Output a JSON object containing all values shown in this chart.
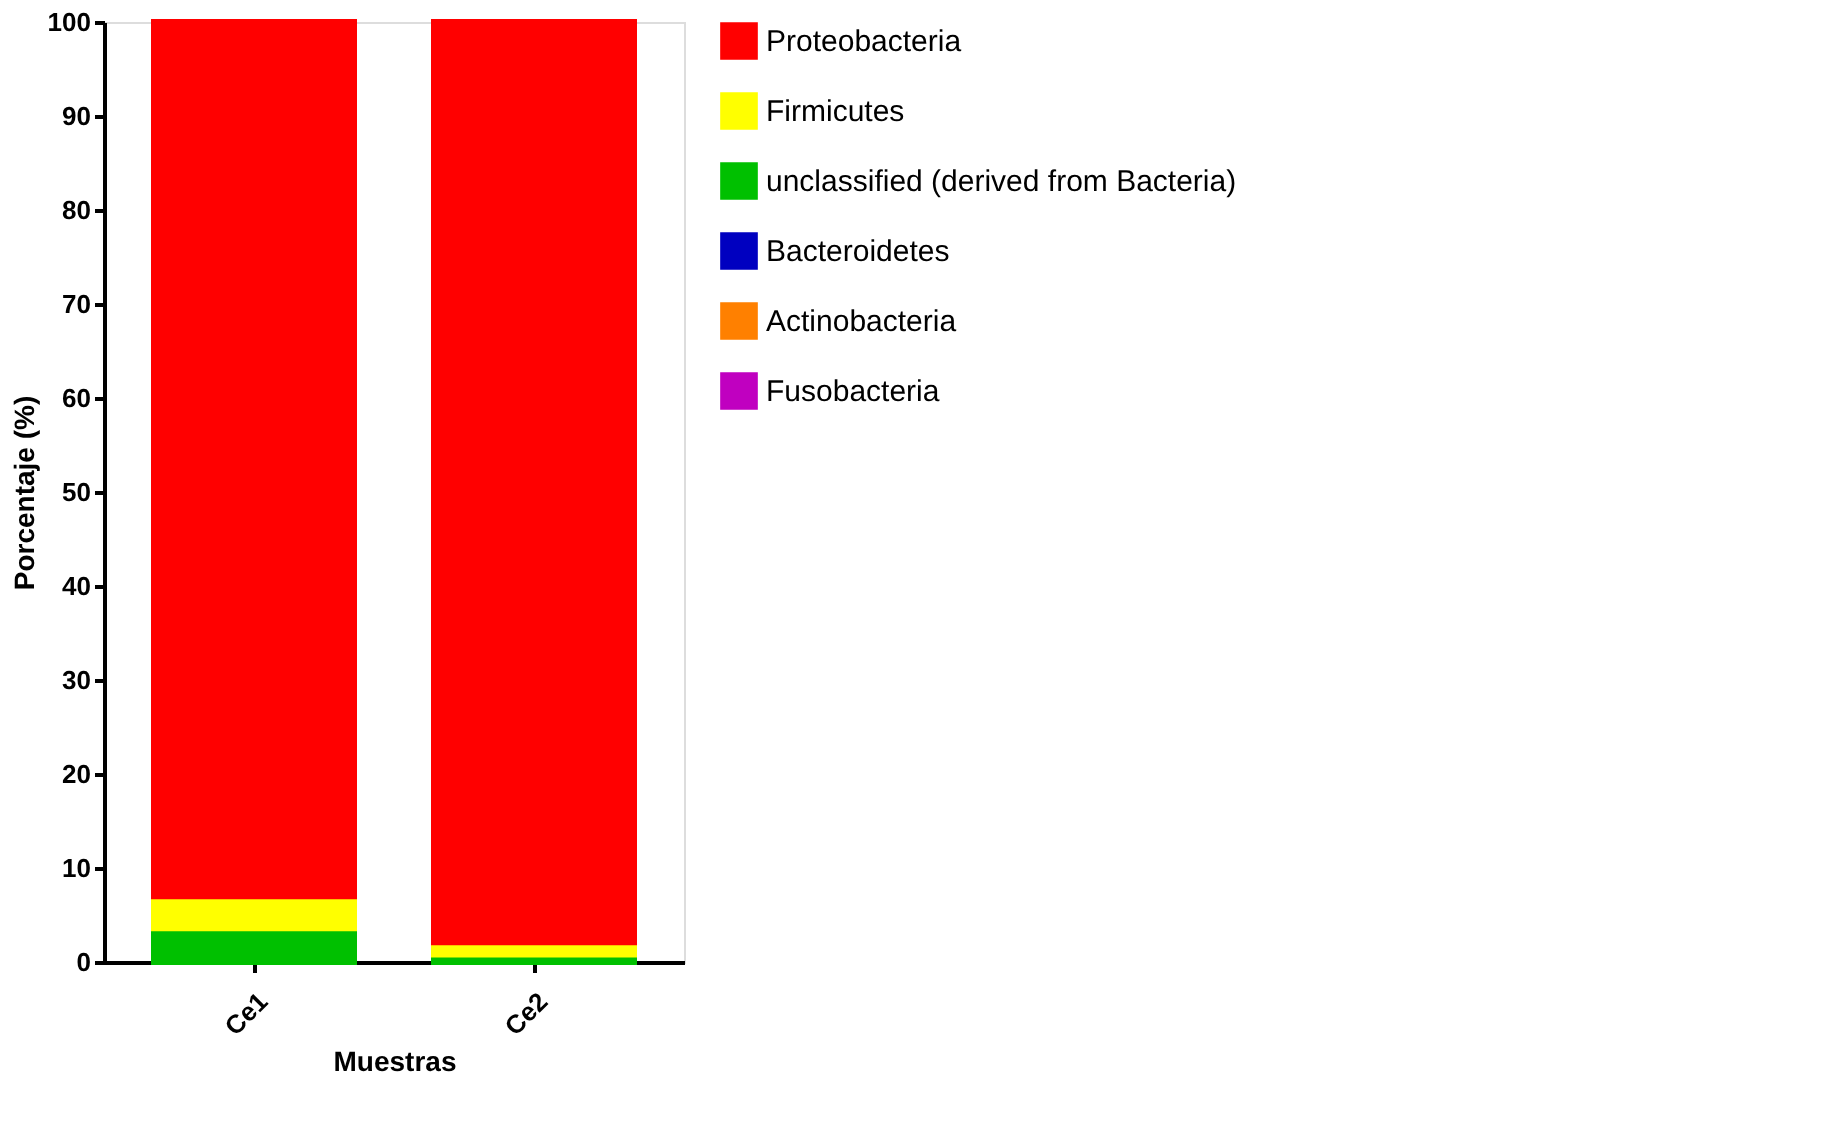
{
  "chart_data": {
    "type": "bar",
    "stacked": true,
    "xlabel": "Muestras",
    "ylabel": "Porcentaje (%)",
    "categories": [
      "Ce1",
      "Ce2"
    ],
    "series": [
      {
        "name": "Fusobacteria",
        "color": "#c000c0",
        "values": [
          0,
          0
        ]
      },
      {
        "name": "Actinobacteria",
        "color": "#ff8000",
        "values": [
          0,
          0
        ]
      },
      {
        "name": "Bacteroidetes",
        "color": "#0000c0",
        "values": [
          0,
          0
        ]
      },
      {
        "name": "unclassified (derived from Bacteria)",
        "color": "#00c000",
        "values": [
          3.6,
          0.8
        ]
      },
      {
        "name": "Firmicutes",
        "color": "#ffff00",
        "values": [
          3.4,
          1.3
        ]
      },
      {
        "name": "Proteobacteria",
        "color": "#ff0000",
        "values": [
          93.0,
          97.9
        ]
      }
    ],
    "ylim": [
      0,
      100
    ],
    "yticks": [
      0,
      10,
      20,
      30,
      40,
      50,
      60,
      70,
      80,
      90,
      100
    ],
    "grid": false,
    "legend": "right"
  }
}
